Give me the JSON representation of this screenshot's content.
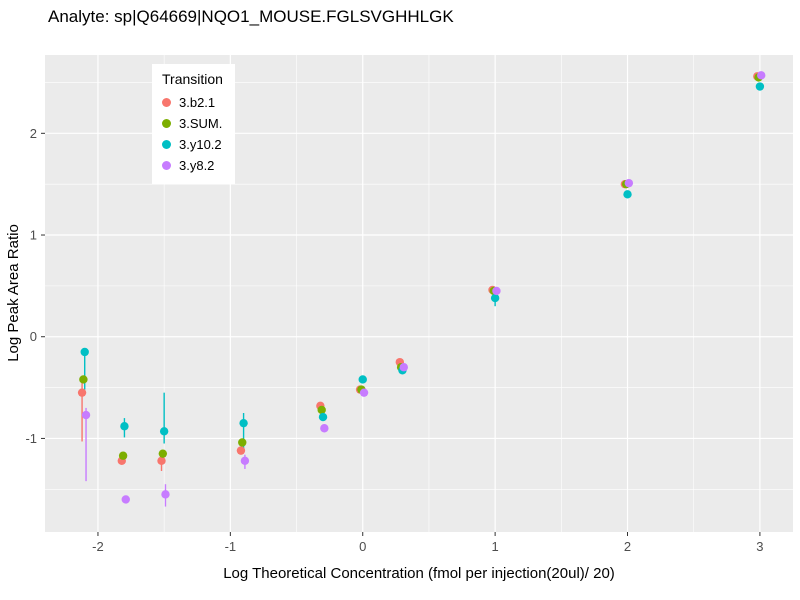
{
  "chart_data": {
    "type": "scatter",
    "title": "Analyte: sp|Q64669|NQO1_MOUSE.FGLSVGHHLGK",
    "xlabel": "Log Theoretical Concentration (fmol per injection(20ul)/ 20)",
    "ylabel": "Log Peak Area Ratio",
    "legend_title": "Transition",
    "xlim": [
      -2.4,
      3.25
    ],
    "ylim": [
      -1.92,
      2.77
    ],
    "x_major_ticks": [
      -2,
      -1,
      0,
      1,
      2,
      3
    ],
    "y_major_ticks": [
      -1,
      0,
      1,
      2
    ],
    "x_minor_ticks": [
      -1.5,
      -0.5,
      0.5,
      1.5,
      2.5
    ],
    "y_minor_ticks": [
      -1.5,
      -0.5,
      0.5,
      1.5,
      2.5
    ],
    "panel_bg": "#EBEBEB",
    "grid_color": "#FFFFFF",
    "tick_mark_color": "#333333",
    "tick_label_color": "#4d4d4d",
    "series": [
      {
        "name": "3.b2.1",
        "color": "#F8766D",
        "points": [
          {
            "x": -2.12,
            "y": -0.55,
            "ymin": -1.03,
            "ymax": -0.45
          },
          {
            "x": -1.82,
            "y": -1.22
          },
          {
            "x": -1.52,
            "y": -1.22,
            "ymin": -1.32,
            "ymax": -1.12
          },
          {
            "x": -0.92,
            "y": -1.12
          },
          {
            "x": -0.32,
            "y": -0.68
          },
          {
            "x": -0.02,
            "y": -0.52
          },
          {
            "x": 0.28,
            "y": -0.25
          },
          {
            "x": 0.98,
            "y": 0.46
          },
          {
            "x": 1.98,
            "y": 1.5
          },
          {
            "x": 2.98,
            "y": 2.56
          }
        ]
      },
      {
        "name": "3.SUM.",
        "color": "#7CAE00",
        "points": [
          {
            "x": -2.11,
            "y": -0.42
          },
          {
            "x": -1.81,
            "y": -1.17
          },
          {
            "x": -1.51,
            "y": -1.15
          },
          {
            "x": -0.91,
            "y": -1.04
          },
          {
            "x": -0.31,
            "y": -0.72
          },
          {
            "x": -0.01,
            "y": -0.52
          },
          {
            "x": 0.29,
            "y": -0.3
          },
          {
            "x": 0.99,
            "y": 0.45
          },
          {
            "x": 1.99,
            "y": 1.5
          },
          {
            "x": 2.99,
            "y": 2.55
          }
        ]
      },
      {
        "name": "3.y10.2",
        "color": "#00BFC4",
        "points": [
          {
            "x": -2.1,
            "y": -0.15,
            "ymin": -0.52,
            "ymax": -0.13
          },
          {
            "x": -1.8,
            "y": -0.88,
            "ymin": -0.99,
            "ymax": -0.8
          },
          {
            "x": -1.5,
            "y": -0.93,
            "ymin": -1.05,
            "ymax": -0.55
          },
          {
            "x": -0.9,
            "y": -0.85,
            "ymin": -1.1,
            "ymax": -0.75
          },
          {
            "x": -0.3,
            "y": -0.79
          },
          {
            "x": 0.0,
            "y": -0.42
          },
          {
            "x": 0.3,
            "y": -0.33
          },
          {
            "x": 1.0,
            "y": 0.38,
            "ymin": 0.3,
            "ymax": 0.42
          },
          {
            "x": 2.0,
            "y": 1.4
          },
          {
            "x": 3.0,
            "y": 2.46
          }
        ]
      },
      {
        "name": "3.y8.2",
        "color": "#C77CFF",
        "points": [
          {
            "x": -2.09,
            "y": -0.77,
            "ymin": -1.42,
            "ymax": -0.7
          },
          {
            "x": -1.79,
            "y": -1.6
          },
          {
            "x": -1.49,
            "y": -1.55,
            "ymin": -1.67,
            "ymax": -1.45
          },
          {
            "x": -0.89,
            "y": -1.22,
            "ymin": -1.3,
            "ymax": -1.16
          },
          {
            "x": -0.29,
            "y": -0.9
          },
          {
            "x": 0.01,
            "y": -0.55
          },
          {
            "x": 0.31,
            "y": -0.3
          },
          {
            "x": 1.01,
            "y": 0.45
          },
          {
            "x": 2.01,
            "y": 1.51
          },
          {
            "x": 3.01,
            "y": 2.57
          }
        ]
      }
    ]
  }
}
